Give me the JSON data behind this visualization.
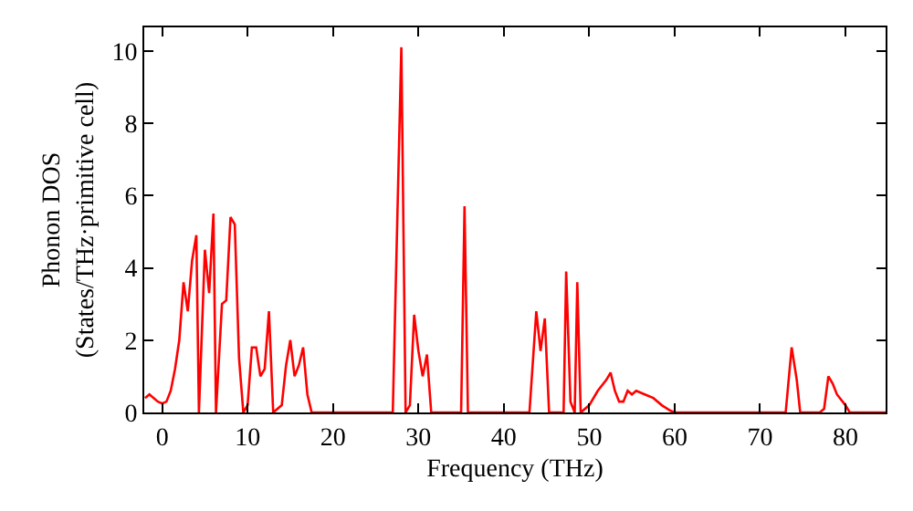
{
  "chart_data": {
    "type": "line",
    "xlabel": "Frequency (THz)",
    "ylabel": "Phonon DOS\n(States/THz·primitive cell)",
    "xlim": [
      -2.1,
      84.7
    ],
    "ylim": [
      0,
      10.65
    ],
    "xticks": [
      0,
      10,
      20,
      30,
      40,
      50,
      60,
      70,
      80
    ],
    "yticks": [
      0,
      2,
      4,
      6,
      8,
      10
    ],
    "grid": false,
    "marker": "none",
    "line_style": "solid",
    "series": [
      {
        "color": "#ff0000",
        "x": [
          -2,
          -1.5,
          -0.5,
          0,
          0.5,
          1,
          1.5,
          2,
          2.5,
          3,
          3.5,
          4,
          4.3,
          5,
          5.5,
          6,
          6.3,
          7,
          7.5,
          8,
          8.5,
          9,
          9.5,
          10,
          10.5,
          11,
          11.5,
          12,
          12.5,
          13,
          13.5,
          14,
          14.5,
          15,
          15.5,
          16,
          16.5,
          17,
          17.5,
          27,
          28,
          28.5,
          29,
          29.5,
          30,
          30.5,
          31,
          31.5,
          35,
          35.4,
          35.8,
          43,
          43.8,
          44.3,
          44.8,
          45.3,
          47,
          47.3,
          47.8,
          48.3,
          48.6,
          49,
          50,
          51,
          52,
          52.5,
          53,
          53.5,
          54,
          54.5,
          55,
          55.5,
          56.5,
          57.5,
          58.5,
          59.5,
          60,
          73,
          73.7,
          74.3,
          74.7,
          77,
          77.5,
          78,
          78.5,
          79,
          80,
          80.5,
          84.7
        ],
        "values": [
          0.4,
          0.5,
          0.3,
          0.25,
          0.3,
          0.6,
          1.2,
          2.0,
          3.6,
          2.8,
          4.2,
          4.9,
          0,
          4.5,
          3.3,
          5.5,
          0,
          3.0,
          3.1,
          5.4,
          5.2,
          1.5,
          0,
          0.2,
          1.8,
          1.8,
          1.0,
          1.2,
          2.8,
          0,
          0.1,
          0.2,
          1.3,
          2.0,
          1.0,
          1.3,
          1.8,
          0.5,
          0,
          0,
          10.1,
          0,
          0.2,
          2.7,
          1.7,
          1.0,
          1.6,
          0,
          0,
          5.7,
          0,
          0,
          2.8,
          1.7,
          2.6,
          0,
          0,
          3.9,
          0.3,
          0,
          3.6,
          0,
          0.2,
          0.6,
          0.9,
          1.1,
          0.6,
          0.3,
          0.3,
          0.6,
          0.5,
          0.6,
          0.5,
          0.4,
          0.2,
          0.05,
          0,
          0,
          1.8,
          0.9,
          0,
          0,
          0.1,
          1.0,
          0.8,
          0.5,
          0.2,
          0,
          0
        ]
      }
    ]
  }
}
